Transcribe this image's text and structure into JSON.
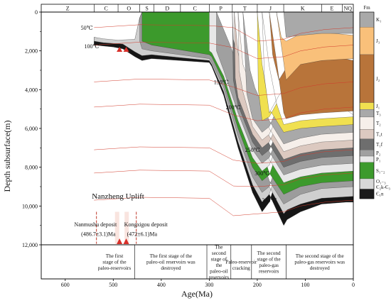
{
  "chart_data": {
    "type": "diagram",
    "title": "",
    "xlabel": "Age(Ma)",
    "ylabel": "Depth subsurface(m)",
    "xlim": [
      650,
      0
    ],
    "ylim": [
      12000,
      0
    ],
    "x_ticks": [
      "600",
      "500",
      "400",
      "300",
      "200",
      "100",
      "0"
    ],
    "y_ticks": [
      "0",
      "2,000",
      "4,000",
      "6,000",
      "8,000",
      "10,000",
      "12,000"
    ],
    "periods": [
      {
        "label": "Z",
        "start": 650,
        "end": 540
      },
      {
        "label": "C",
        "start": 540,
        "end": 490
      },
      {
        "label": "O",
        "start": 490,
        "end": 445
      },
      {
        "label": "S",
        "start": 445,
        "end": 415
      },
      {
        "label": "D",
        "start": 415,
        "end": 360
      },
      {
        "label": "C",
        "start": 360,
        "end": 300
      },
      {
        "label": "P",
        "start": 300,
        "end": 252
      },
      {
        "label": "T",
        "start": 252,
        "end": 200
      },
      {
        "label": "J",
        "start": 200,
        "end": 145
      },
      {
        "label": "K",
        "start": 145,
        "end": 66
      },
      {
        "label": "E",
        "start": 66,
        "end": 23
      },
      {
        "label": "NQ",
        "start": 23,
        "end": 0
      }
    ],
    "temperature_labels": [
      {
        "text": "50℃",
        "age": 555,
        "depth": 800
      },
      {
        "text": "100℃",
        "age": 545,
        "depth": 1750
      },
      {
        "text": "150℃",
        "age": 275,
        "depth": 3600
      },
      {
        "text": "200℃",
        "age": 250,
        "depth": 4900
      },
      {
        "text": "250℃",
        "age": 210,
        "depth": 7100
      },
      {
        "text": "300℃",
        "age": 190,
        "depth": 8300
      },
      {
        "text": "350℃",
        "age": 175,
        "depth": 9700
      }
    ],
    "stages": [
      {
        "text": "The first stage of the paleo-reservoirs",
        "start": 540,
        "end": 455
      },
      {
        "text": "The first stage of the paleo-oil reservoirs was destroyed",
        "start": 455,
        "end": 305
      },
      {
        "text": "The second stage of the paleo-oil reservoirs",
        "start": 305,
        "end": 255
      },
      {
        "text": "Paleo-reservoir cracking",
        "start": 255,
        "end": 212
      },
      {
        "text": "The second stage of the paleo-gas reservoirs",
        "start": 212,
        "end": 140
      },
      {
        "text": "The second stage of the paleo-gas reservoirs was destroyed",
        "start": 140,
        "end": 0
      }
    ],
    "annotations": {
      "uplift": "Nanzheng Uplift",
      "deposit_1_name": "Nanmushu deposit",
      "deposit_1_age": "(486.7±3.1)Ma",
      "deposit_2_name": "Kongxigou deposit",
      "deposit_2_age": "(472±6.1)Ma"
    },
    "legend": {
      "title": "Fm",
      "entries": [
        {
          "label": "K₁",
          "color": "#a9a9a9"
        },
        {
          "label": "J₃",
          "color": "#f9c07a"
        },
        {
          "label": "J₂",
          "color": "#b8743a"
        },
        {
          "label": "J₁",
          "color": "#f0e050"
        },
        {
          "label": "T₃",
          "color": "#a9a9a9"
        },
        {
          "label": "T₂",
          "color": "#f6efea"
        },
        {
          "label": "T₁t",
          "color": "#dcc9c0"
        },
        {
          "label": "T₁f",
          "color": "#6e6e6e"
        },
        {
          "label": "P₂",
          "color": "#a0a0a0"
        },
        {
          "label": "P₁",
          "color": "#e8e8e8"
        },
        {
          "label": "S₁₋₂",
          "color": "#3c9a2c"
        },
        {
          "label": "O₁₋₃ Є₂k-Є₃",
          "color": "#d8d8d8"
        },
        {
          "label": "Є₁n",
          "color": "#1a1a1a"
        }
      ]
    }
  }
}
